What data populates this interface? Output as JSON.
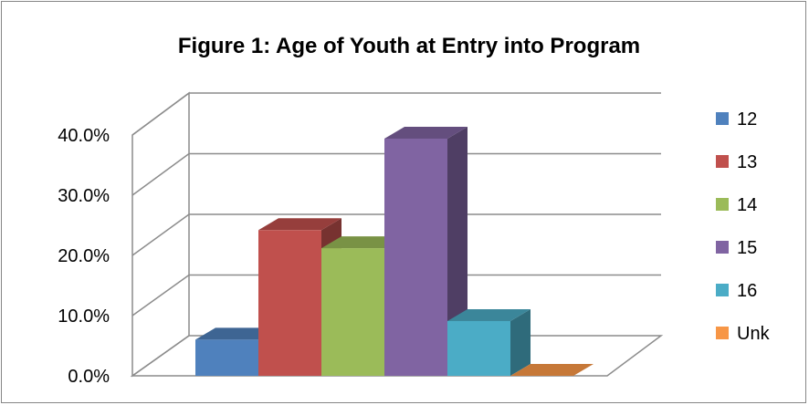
{
  "chart_data": {
    "type": "bar",
    "title": "Figure 1: Age of Youth at Entry into Program",
    "xlabel": "",
    "ylabel": "",
    "ylim": [
      0,
      40
    ],
    "y_ticks": [
      "0.0%",
      "10.0%",
      "20.0%",
      "30.0%",
      "40.0%"
    ],
    "grid": true,
    "legend_position": "right",
    "series": [
      {
        "name": "12",
        "value": 6.0,
        "color": "#4F81BD"
      },
      {
        "name": "13",
        "value": 24.2,
        "color": "#C0504D"
      },
      {
        "name": "14",
        "value": 21.2,
        "color": "#9BBB59"
      },
      {
        "name": "15",
        "value": 39.4,
        "color": "#8064A2"
      },
      {
        "name": "16",
        "value": 9.1,
        "color": "#4BACC6"
      },
      {
        "name": "Unk",
        "value": 0.0,
        "color": "#F79646"
      }
    ]
  }
}
